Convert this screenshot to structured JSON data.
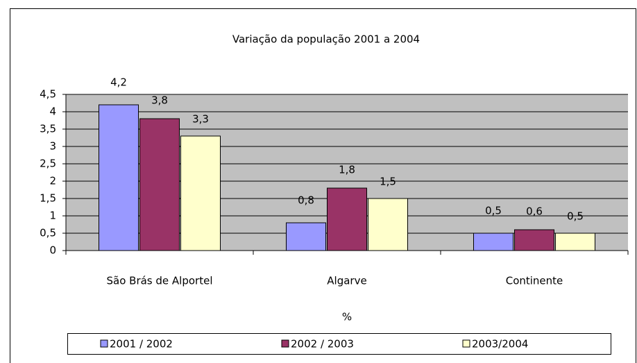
{
  "chart_data": {
    "type": "bar",
    "title": "Variação da população 2001 a 2004",
    "x_label": "%",
    "categories": [
      "São Brás de Alportel",
      "Algarve",
      "Continente"
    ],
    "series": [
      {
        "name": "2001 / 2002",
        "color": "#9999ff",
        "values": [
          4.2,
          0.8,
          0.5
        ],
        "value_labels": [
          "4,2",
          "0,8",
          "0,5"
        ]
      },
      {
        "name": "2002 / 2003",
        "color": "#993366",
        "values": [
          3.8,
          1.8,
          0.6
        ],
        "value_labels": [
          "3,8",
          "1,8",
          "0,6"
        ]
      },
      {
        "name": "2003/2004",
        "color": "#ffffcc",
        "values": [
          3.3,
          1.5,
          0.5
        ],
        "value_labels": [
          "3,3",
          "1,5",
          "0,5"
        ]
      }
    ],
    "ylim": [
      0,
      4.5
    ],
    "yticks": [
      0,
      {
        "value": 0.5,
        "label": "0,5"
      },
      1,
      {
        "value": 1.5,
        "label": "1,5"
      },
      2,
      {
        "value": 2.5,
        "label": "2,5"
      },
      3,
      {
        "value": 3.5,
        "label": "3,5"
      },
      4,
      {
        "value": 4.5,
        "label": "4,5"
      }
    ],
    "grid": true,
    "plot_background": "#c0c0c0",
    "legend": "bottom"
  }
}
